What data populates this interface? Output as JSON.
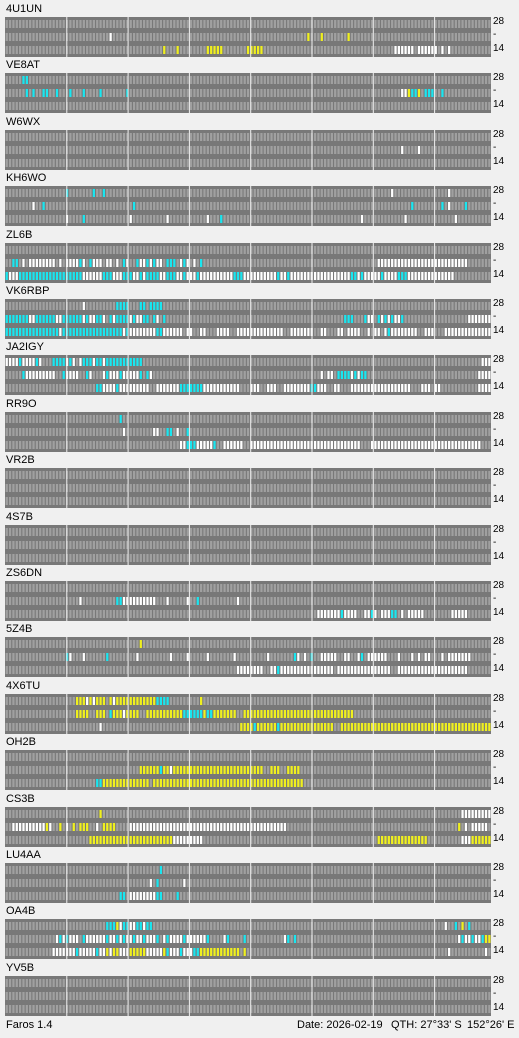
{
  "beacons": [
    {
      "call": "4U1UN",
      "rows": [
        "..............................................................................................",
        "...............................w..........................................................y...y.......y....",
        "...............................................y...y........yyyyy.......yyyyy.......................................wwwwww.wwwwww.w.w..."
      ]
    },
    {
      "call": "VE8AT",
      "rows": [
        ".....cc..................................................................................................................................................",
        "......c.c..cc..c...c...c....c.......c.................................................................................wwyccy.ccc..c...",
        "....................................................................................................................................."
      ]
    },
    {
      "call": "W6WX",
      "rows": [
        "...................................................................",
        "......................................................................................................................w....w.......",
        "......................................................................."
      ]
    },
    {
      "call": "KH6WO",
      "rows": [
        "..................c.......c..c.....................................................................................w................w.....",
        "........w..c..........................c..................................................................................c........c.w....c..",
        "..................w....c.............w..........w...........w...c.........................................w............w..............w.."
      ]
    },
    {
      "call": "ZL6B",
      "rows": [
        ".................................................................................................................................................ww",
        "..cc.w.wwwwwwww.w.wwwwcw.cwww.ww.w.cw..cwwcwcww.ccc.wcw.w.c....................................................wwwwwwwwwwwwwwwwwwwwwwwwwww",
        "cwwwcccccccccccccccccccwwwwwwcccwwwcccwwcwccccwwcccwwcwwwcwwwwwwwwwwcccwwwwwwwwwwcwwcwwwwwwwwwwwwwwwwwwccwcwwwwwcwwwwcccwwwwwwwwwwwwww"
      ]
    },
    {
      "call": "VK6RBP",
      "rows": [
        ".......................w.........cccc...cc.cccc...................................................................................................",
        "cccccccwwccccccwwccccccwcwwccw.cwccccwcwwcc.cw.c.....................................................ccc...cww.cwcwcwwc...................wwwwwwww.",
        "ccccccccccccccccwccccccccccccccccccwcwwwwwwwwccwwwwww.ww..ww...wwww..wwwwwwwwwwwwww..wwwwwww..ww...ww.wwww..w.ww.wcwwwwwwww..www...wwwwwwwwwwwwwww"
      ]
    },
    {
      "call": "JA2IGY",
      "rows": [
        "wwwwcwwwwcw...ccccwcw.wcccwccwccccccccccc.....................................................................................................wwwwwwwwww",
        ".....cwwwwwwwww..cwwww..cw...wcwwwcwwwwwc.cw..................................................w.ww.ccccwcwcc.................................wwwwwc...",
        "...........................ccwwwwcwwwwwwwww..wwwwwwwcccccccwwwwwwwwwww...www..www..wwwwwwwwccwww..ww...wwwwwwwwwwwwwwwwww...www.ww...........wwwww..wwwwwwwww"
      ]
    },
    {
      "call": "RR9O",
      "rows": [
        "..................................c.....................................................................................................",
        "...................................w........ww..cc.w..c...............................................................................",
        "....................................................wwcccwwwwwc..wwwwww..wwwwwwwwwwwwwwwwwwwwwwwwwwwwwwwww...wwwwwwwwwwwwwwwwwwwwwwwwwwwwwwwww"
      ]
    },
    {
      "call": "VR2B",
      "rows": [
        ".....................................................................",
        ".....................................................................",
        "....................................................................."
      ]
    },
    {
      "call": "4S7B",
      "rows": [
        ".....................................................................",
        ".....................................................................",
        "....................................................................."
      ]
    },
    {
      "call": "ZS6DN",
      "rows": [
        ".....................................................................",
        "......................w..........ccwwwwwwwwww...w.....w..c...........w..................................................................",
        ".............................................................................................wwwwwwwcwwww..wwcw.wwwcc.w.wwwww........wwwww..............."
      ]
    },
    {
      "call": "5Z4B",
      "rows": [
        "........................................y...............................................................................................",
        "..................cw...w......c........w.........w....w.....w.......w.........w.......cw.w.c..wwwww..ww..wc.wwwwww...w...w.w.ww...w.wwwwwww",
        ".....................................................................wwwwwwww..wwcwwwwwwwwwwwwwwww.wwwwwwwwwwwwwwww..wwwwwwwwwwwwwwwwwwwww"
      ]
    },
    {
      "call": "4X6TU",
      "rows": [
        ".....................yyywywyyy.ywyyyyyyyyyyyycccc.........y.........................................................................................",
        ".....................yyyy..yyy.cyyywyyyy..yyyyyyyyyyyccccccyccyyyyyyy..yyyyyyyyyyyyyyyyyyyyyyyyyyyyyyyyy.......................................",
        "............................w.........................................yyyycyyyyyycyyyyyyyyyyyyyyyy..yyyyyyyyyyyyyyyyyyyyyyyyyyyyyyyyyyyyyyyyyyyyyyyyyyyyy"
      ]
    },
    {
      "call": "OH2B",
      "rows": [
        ".......................................................................................",
        "........................................yyyyyycyywyyyyyyyyyyyyyyyyyyyyyyyyyyy..yyy..yyyy..................",
        "...........................ccyyyyyyyyyyyyyy.yyyyyyyyyyyyyyyyyyyyyyyyyyyyyyyyyyyyyyyyyyyyy.........."
      ]
    },
    {
      "call": "CS3B",
      "rows": [
        "............................y...........................................................................................................wwwwwwwww",
        "..wwwwwwwwwwyw..y.w.y.yyy..w.yyyy....wwwwwwwwwwwwwwwwwwwwwwwwwwwwwwwwwwwwwwwwwwwwwww...................................................y.w.wwwww..www",
        ".........................yyyyyyyyyyyyyyyyyyyyyyyyywwwwwwwww....................................................yyyyyyyyyyyyyyy..........wwwyyyyyy"
      ]
    },
    {
      "call": "LU4AA",
      "rows": [
        "..............................................c.......................................................................................",
        "...........................................w.c.......w.................................................................................",
        "..................................cc.wwwwwwwwcc....c............................................................................................."
      ]
    },
    {
      "call": "OA4B",
      "rows": [
        "..............................cccywccwwccwcc.......................................................................................w..c.y.c..",
        "...............wcwcwww.cwwwwwwcwwcwcwwcwwcwwwc.wcwwwwcwwwwwwc....wc....c...........wc.c................................................wcwwcwwcyyyy",
        "..............wwwwwwwcwwwwwcwwywyywwwyyyyywwwwwycwwwcwwwccyyyyyyyyyyyy.y............................................................w..........w"
      ]
    },
    {
      "call": "YV5B",
      "rows": [
        ".....................................................................",
        ".....................................................................",
        "....................................................................."
      ]
    }
  ],
  "scale_labels": {
    "top": "28",
    "mid": "-",
    "bottom": "14"
  },
  "colors": {
    "grid": "#787878",
    "empty": "#a0a0a0",
    "white": "#ffffff",
    "cyan": "#19e6f0",
    "yellow": "#f0f01e",
    "hour_line": "#f0f0f0"
  },
  "statusbar": {
    "app": "Faros 1.4",
    "date_label": "Date: 2026-02-19",
    "qth_label": "QTH: 27°33' S",
    "qth_lon": "152°26' E"
  }
}
